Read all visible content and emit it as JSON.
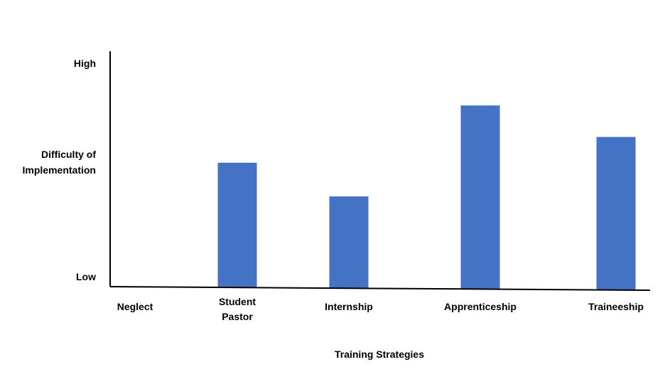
{
  "chart_data": {
    "type": "bar",
    "categories": [
      "Neglect",
      "Student Pastor",
      "Internship",
      "Apprenticeship",
      "Traineeship"
    ],
    "category_lines": [
      [
        "Neglect"
      ],
      [
        "Student",
        "Pastor"
      ],
      [
        "Internship"
      ],
      [
        "Apprenticeship"
      ],
      [
        "Traineeship"
      ]
    ],
    "values": [
      0,
      5.3,
      3.9,
      7.8,
      6.5
    ],
    "ylim": [
      0,
      10
    ],
    "y_scale": "qualitative (Low to High)",
    "xlabel": "Training Strategies",
    "ylabel": [
      "Difficulty of",
      "Implementation"
    ],
    "ytick_labels": {
      "low": "Low",
      "high": "High"
    },
    "bar_color": "#4472C4",
    "grid": false,
    "legend": "none"
  }
}
